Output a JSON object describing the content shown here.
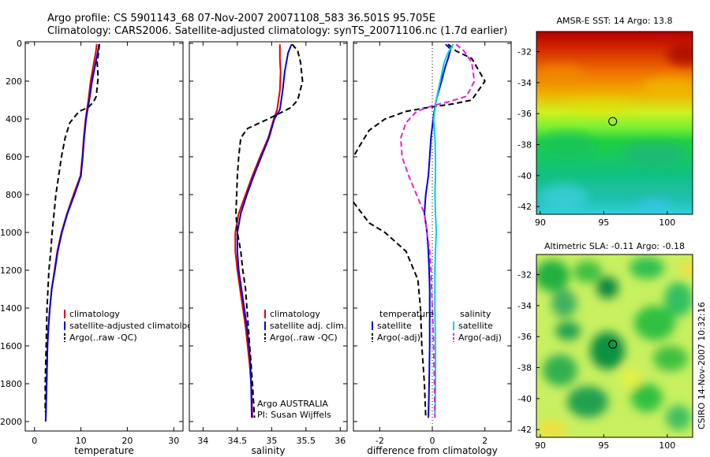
{
  "title": {
    "line1": "Argo profile: CS 5901143_68 07-Nov-2007 20071108_583 36.501S 95.705E",
    "line2": "Climatology: CARS2006. Satellite-adjusted climatology: synTS_20071106.nc (1.7d earlier)"
  },
  "credit": "CSIRO 14-Nov-2007 10:32:16",
  "colors": {
    "climatology": "#e00000",
    "satellite": "#0000e0",
    "argo": "#000000",
    "sal_satellite": "#00d0e0",
    "sal_argo": "#e020e0"
  },
  "chart_data": [
    {
      "type": "line",
      "panel": "temperature",
      "xlabel": "temperature",
      "ylabel": "",
      "xlim": [
        -2,
        32
      ],
      "ylim": [
        2050,
        0
      ],
      "xticks": [
        0,
        10,
        20,
        30
      ],
      "yticks": [
        0,
        200,
        400,
        600,
        800,
        1000,
        1200,
        1400,
        1600,
        1800,
        2000
      ],
      "legend": [
        "climatology",
        "satellite-adjusted climatology",
        "Argo(..raw -QC)"
      ],
      "series": [
        {
          "name": "climatology",
          "style": "solid",
          "color_key": "climatology",
          "points": [
            [
              13.4,
              5
            ],
            [
              13.2,
              50
            ],
            [
              12.8,
              100
            ],
            [
              12.1,
              200
            ],
            [
              11.6,
              300
            ],
            [
              11.0,
              400
            ],
            [
              10.6,
              500
            ],
            [
              10.3,
              600
            ],
            [
              9.9,
              700
            ],
            [
              8.4,
              800
            ],
            [
              7.0,
              900
            ],
            [
              5.8,
              1000
            ],
            [
              4.9,
              1100
            ],
            [
              4.3,
              1200
            ],
            [
              3.7,
              1300
            ],
            [
              3.3,
              1400
            ],
            [
              3.0,
              1500
            ],
            [
              2.8,
              1600
            ],
            [
              2.6,
              1800
            ],
            [
              2.4,
              2000
            ]
          ]
        },
        {
          "name": "satellite-adjusted climatology",
          "style": "solid",
          "color_key": "satellite",
          "points": [
            [
              13.9,
              5
            ],
            [
              13.6,
              50
            ],
            [
              13.2,
              100
            ],
            [
              12.4,
              200
            ],
            [
              11.8,
              300
            ],
            [
              11.1,
              400
            ],
            [
              10.7,
              500
            ],
            [
              10.4,
              600
            ],
            [
              10.0,
              700
            ],
            [
              8.6,
              800
            ],
            [
              7.1,
              900
            ],
            [
              5.9,
              1000
            ],
            [
              5.0,
              1100
            ],
            [
              4.4,
              1200
            ],
            [
              3.7,
              1300
            ],
            [
              3.3,
              1400
            ],
            [
              3.0,
              1500
            ],
            [
              2.8,
              1600
            ],
            [
              2.6,
              1800
            ],
            [
              2.4,
              2000
            ]
          ]
        },
        {
          "name": "Argo(..raw -QC)",
          "style": "dashed",
          "color_key": "argo",
          "points": [
            [
              14.0,
              5
            ],
            [
              13.8,
              50
            ],
            [
              13.5,
              100
            ],
            [
              13.7,
              180
            ],
            [
              13.3,
              280
            ],
            [
              12.7,
              310
            ],
            [
              11.5,
              340
            ],
            [
              9.6,
              360
            ],
            [
              7.6,
              420
            ],
            [
              6.6,
              500
            ],
            [
              5.8,
              600
            ],
            [
              5.2,
              700
            ],
            [
              4.6,
              800
            ],
            [
              4.2,
              900
            ],
            [
              3.8,
              1000
            ],
            [
              3.5,
              1100
            ],
            [
              3.1,
              1200
            ],
            [
              2.9,
              1300
            ],
            [
              2.7,
              1400
            ],
            [
              2.5,
              1600
            ],
            [
              2.3,
              1800
            ],
            [
              2.3,
              1950
            ]
          ]
        }
      ]
    },
    {
      "type": "line",
      "panel": "salinity",
      "xlabel": "salinity",
      "ylabel": "",
      "xlim": [
        33.8,
        36.1
      ],
      "ylim": [
        2050,
        0
      ],
      "xticks": [
        34,
        34.5,
        35,
        35.5,
        36
      ],
      "legend": [
        "climatology",
        "satellite adj. clim.",
        "Argo(..raw -QC)"
      ],
      "annotation": [
        "Argo AUSTRALIA",
        "PI: Susan Wijffels"
      ],
      "series": [
        {
          "name": "climatology",
          "style": "solid",
          "color_key": "climatology",
          "points": [
            [
              35.12,
              5
            ],
            [
              35.12,
              80
            ],
            [
              35.13,
              150
            ],
            [
              35.12,
              250
            ],
            [
              35.08,
              350
            ],
            [
              35.03,
              400
            ],
            [
              34.95,
              500
            ],
            [
              34.83,
              600
            ],
            [
              34.72,
              700
            ],
            [
              34.62,
              800
            ],
            [
              34.52,
              900
            ],
            [
              34.47,
              1000
            ],
            [
              34.47,
              1100
            ],
            [
              34.5,
              1200
            ],
            [
              34.54,
              1300
            ],
            [
              34.58,
              1400
            ],
            [
              34.62,
              1500
            ],
            [
              34.65,
              1600
            ],
            [
              34.68,
              1700
            ],
            [
              34.7,
              1800
            ],
            [
              34.72,
              1980
            ]
          ]
        },
        {
          "name": "satellite adj. clim.",
          "style": "solid",
          "color_key": "satellite",
          "points": [
            [
              35.29,
              5
            ],
            [
              35.24,
              50
            ],
            [
              35.19,
              150
            ],
            [
              35.16,
              250
            ],
            [
              35.12,
              350
            ],
            [
              35.04,
              400
            ],
            [
              34.96,
              500
            ],
            [
              34.85,
              600
            ],
            [
              34.74,
              700
            ],
            [
              34.64,
              800
            ],
            [
              34.55,
              900
            ],
            [
              34.5,
              1000
            ],
            [
              34.5,
              1100
            ],
            [
              34.52,
              1200
            ],
            [
              34.56,
              1300
            ],
            [
              34.6,
              1400
            ],
            [
              34.64,
              1500
            ],
            [
              34.67,
              1600
            ],
            [
              34.69,
              1700
            ],
            [
              34.7,
              1800
            ],
            [
              34.71,
              1980
            ]
          ]
        },
        {
          "name": "Argo(..raw -QC)",
          "style": "dashed",
          "color_key": "argo",
          "points": [
            [
              35.3,
              5
            ],
            [
              35.38,
              40
            ],
            [
              35.42,
              100
            ],
            [
              35.45,
              200
            ],
            [
              35.38,
              300
            ],
            [
              35.28,
              340
            ],
            [
              34.95,
              400
            ],
            [
              34.65,
              450
            ],
            [
              34.55,
              500
            ],
            [
              34.52,
              600
            ],
            [
              34.5,
              700
            ],
            [
              34.49,
              800
            ],
            [
              34.48,
              900
            ],
            [
              34.5,
              1000
            ],
            [
              34.55,
              1100
            ],
            [
              34.58,
              1200
            ],
            [
              34.62,
              1300
            ],
            [
              34.64,
              1400
            ],
            [
              34.66,
              1500
            ],
            [
              34.68,
              1600
            ],
            [
              34.7,
              1700
            ],
            [
              34.72,
              1800
            ],
            [
              34.75,
              1980
            ]
          ]
        }
      ]
    },
    {
      "type": "line",
      "panel": "difference",
      "xlabel": "difference from climatology",
      "ylabel": "",
      "xlim": [
        -3,
        3
      ],
      "ylim": [
        2050,
        0
      ],
      "xticks": [
        -2,
        0,
        2
      ],
      "legend_left": [
        "temperature",
        "satellite",
        "Argo(-adj)"
      ],
      "legend_right": [
        "salinity",
        "satellite",
        "Argo(-adj)"
      ],
      "series": [
        {
          "name": "temperature satellite",
          "style": "solid",
          "color_key": "satellite",
          "points": [
            [
              0.5,
              5
            ],
            [
              0.7,
              30
            ],
            [
              0.6,
              80
            ],
            [
              0.5,
              120
            ],
            [
              0.35,
              200
            ],
            [
              0.15,
              300
            ],
            [
              0.05,
              380
            ],
            [
              -0.05,
              500
            ],
            [
              -0.1,
              600
            ],
            [
              -0.15,
              700
            ],
            [
              -0.25,
              800
            ],
            [
              -0.3,
              900
            ],
            [
              -0.2,
              1000
            ],
            [
              -0.15,
              1100
            ],
            [
              -0.12,
              1200
            ],
            [
              -0.1,
              1300
            ],
            [
              -0.1,
              1400
            ],
            [
              -0.1,
              1600
            ],
            [
              -0.12,
              1800
            ],
            [
              -0.15,
              1980
            ]
          ]
        },
        {
          "name": "temperature Argo(-adj)",
          "style": "dashed",
          "color_key": "argo",
          "points": [
            [
              0.6,
              5
            ],
            [
              0.9,
              40
            ],
            [
              1.5,
              80
            ],
            [
              2.0,
              200
            ],
            [
              1.5,
              300
            ],
            [
              0.8,
              320
            ],
            [
              -0.2,
              340
            ],
            [
              -1.0,
              360
            ],
            [
              -1.8,
              400
            ],
            [
              -2.4,
              460
            ],
            [
              -2.8,
              550
            ],
            [
              -3.0,
              600
            ]
          ]
        },
        {
          "name": "temperature Argo(-adj) deep",
          "style": "dashed",
          "color_key": "argo",
          "points": [
            [
              -3.0,
              840
            ],
            [
              -2.4,
              950
            ],
            [
              -1.8,
              1000
            ],
            [
              -1.0,
              1100
            ],
            [
              -0.7,
              1200
            ],
            [
              -0.55,
              1250
            ],
            [
              -0.45,
              1400
            ],
            [
              -0.4,
              1600
            ],
            [
              -0.3,
              1800
            ],
            [
              -0.25,
              1980
            ]
          ]
        },
        {
          "name": "salinity satellite",
          "style": "solid",
          "color_key": "sal_satellite",
          "points": [
            [
              0.8,
              5
            ],
            [
              0.6,
              50
            ],
            [
              0.45,
              100
            ],
            [
              0.3,
              200
            ],
            [
              0.15,
              300
            ],
            [
              0.05,
              400
            ],
            [
              0.1,
              500
            ],
            [
              0.12,
              600
            ],
            [
              0.12,
              700
            ],
            [
              0.1,
              800
            ],
            [
              0.12,
              900
            ],
            [
              0.15,
              1000
            ],
            [
              0.12,
              1100
            ],
            [
              0.1,
              1200
            ],
            [
              0.1,
              1400
            ],
            [
              0.12,
              1600
            ],
            [
              0.12,
              1800
            ],
            [
              0.1,
              1980
            ]
          ]
        },
        {
          "name": "salinity Argo(-adj)",
          "style": "dashed",
          "color_key": "sal_argo",
          "points": [
            [
              0.9,
              5
            ],
            [
              1.2,
              40
            ],
            [
              1.5,
              100
            ],
            [
              1.6,
              200
            ],
            [
              1.3,
              280
            ],
            [
              0.6,
              310
            ],
            [
              0.0,
              330
            ],
            [
              -0.6,
              360
            ],
            [
              -1.0,
              420
            ],
            [
              -1.2,
              500
            ],
            [
              -1.15,
              600
            ],
            [
              -0.9,
              700
            ],
            [
              -0.6,
              800
            ],
            [
              -0.3,
              900
            ],
            [
              -0.2,
              1000
            ],
            [
              -0.1,
              1100
            ],
            [
              -0.05,
              1200
            ],
            [
              0.0,
              1400
            ],
            [
              0.05,
              1600
            ],
            [
              0.08,
              1800
            ],
            [
              0.1,
              1980
            ]
          ]
        }
      ]
    },
    {
      "type": "heatmap",
      "panel": "sst_map",
      "title": "AMSR-E SST: 14 Argo: 13.8",
      "xlim": [
        89.7,
        102
      ],
      "ylim": [
        -42.5,
        -30.7
      ],
      "xticks": [
        90,
        95,
        100
      ],
      "yticks": [
        -32,
        -34,
        -36,
        -38,
        -40,
        -42
      ],
      "marker": {
        "lon": 95.705,
        "lat": -36.501
      }
    },
    {
      "type": "heatmap",
      "panel": "sla_map",
      "title": "Altimetric SLA: -0.11 Argo: -0.18",
      "xlim": [
        89.7,
        102
      ],
      "ylim": [
        -42.5,
        -30.7
      ],
      "xticks": [
        90,
        95,
        100
      ],
      "yticks": [
        -32,
        -34,
        -36,
        -38,
        -40,
        -42
      ],
      "marker": {
        "lon": 95.705,
        "lat": -36.501
      }
    }
  ]
}
